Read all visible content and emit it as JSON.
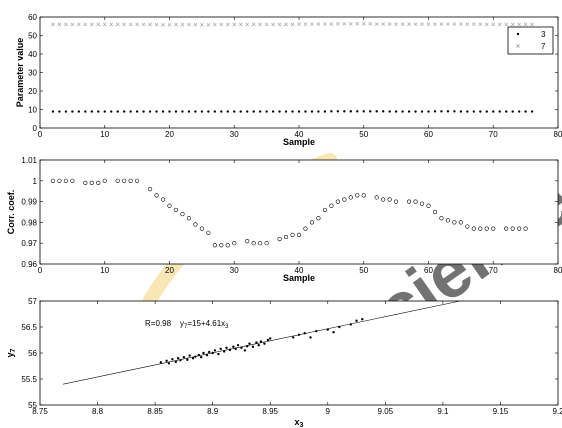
{
  "watermark": {
    "text": "Science",
    "color": "#d8dbe6",
    "accent_color": "#f3d27a"
  },
  "chart_data": [
    {
      "type": "scatter",
      "xlabel": "Sample",
      "ylabel": "Parameter value",
      "xlim": [
        0,
        80
      ],
      "ylim": [
        0,
        60
      ],
      "xticks": [
        0,
        10,
        20,
        30,
        40,
        50,
        60,
        70,
        80
      ],
      "yticks": [
        0,
        10,
        20,
        30,
        40,
        50,
        60
      ],
      "grid": false,
      "legend_position": "top-right",
      "series": [
        {
          "name": "3",
          "marker": "dot",
          "color": "#000000",
          "x": [
            2,
            3,
            4,
            5,
            6,
            7,
            8,
            9,
            10,
            11,
            12,
            13,
            14,
            15,
            16,
            17,
            18,
            19,
            20,
            21,
            22,
            23,
            24,
            25,
            26,
            27,
            28,
            29,
            30,
            31,
            32,
            33,
            34,
            35,
            36,
            37,
            38,
            39,
            40,
            41,
            42,
            43,
            44,
            45,
            46,
            47,
            48,
            49,
            50,
            51,
            52,
            53,
            54,
            55,
            56,
            57,
            58,
            59,
            60,
            61,
            62,
            63,
            64,
            65,
            66,
            67,
            68,
            69,
            70,
            71,
            72,
            73,
            74,
            75,
            76
          ],
          "y": [
            8.9,
            8.9,
            8.9,
            8.9,
            8.9,
            8.9,
            8.9,
            8.9,
            8.9,
            8.9,
            8.9,
            8.9,
            8.9,
            8.9,
            8.9,
            8.9,
            8.9,
            8.9,
            8.9,
            8.9,
            8.9,
            8.9,
            8.9,
            8.9,
            8.9,
            8.9,
            8.9,
            8.9,
            8.9,
            8.9,
            8.9,
            8.9,
            8.9,
            8.9,
            8.9,
            8.9,
            8.9,
            8.9,
            8.9,
            8.9,
            8.9,
            8.9,
            8.9,
            9.0,
            9.0,
            9.0,
            9.0,
            9.0,
            9.0,
            9.0,
            9.0,
            9.0,
            8.9,
            8.9,
            8.9,
            8.9,
            8.9,
            8.9,
            8.9,
            9.0,
            9.0,
            9.0,
            9.0,
            8.9,
            8.9,
            8.9,
            8.9,
            8.9,
            8.9,
            8.9,
            8.9,
            8.9,
            8.9,
            8.9,
            8.9
          ]
        },
        {
          "name": "7",
          "marker": "x",
          "color": "#999999",
          "x": [
            2,
            3,
            4,
            5,
            6,
            7,
            8,
            9,
            10,
            11,
            12,
            13,
            14,
            15,
            16,
            17,
            18,
            19,
            20,
            21,
            22,
            23,
            24,
            25,
            26,
            27,
            28,
            29,
            30,
            31,
            32,
            33,
            34,
            35,
            36,
            37,
            38,
            39,
            40,
            41,
            42,
            43,
            44,
            45,
            46,
            47,
            48,
            49,
            50,
            51,
            52,
            53,
            54,
            55,
            56,
            57,
            58,
            59,
            60,
            61,
            62,
            63,
            64,
            65,
            66,
            67,
            68,
            69,
            70,
            71,
            72,
            73,
            74,
            75,
            76
          ],
          "y": [
            56.0,
            56.0,
            56.0,
            56.0,
            56.0,
            56.0,
            56.0,
            56.0,
            56.0,
            56.0,
            56.0,
            56.0,
            56.0,
            56.0,
            56.0,
            55.9,
            55.9,
            55.8,
            55.8,
            55.9,
            55.9,
            55.9,
            55.9,
            55.8,
            55.8,
            55.9,
            55.9,
            55.9,
            55.9,
            56.0,
            56.0,
            56.0,
            56.0,
            56.0,
            55.9,
            56.0,
            56.0,
            56.0,
            56.1,
            56.1,
            56.2,
            56.2,
            56.2,
            56.2,
            56.3,
            56.3,
            56.3,
            56.3,
            56.3,
            56.3,
            56.2,
            56.2,
            56.2,
            56.1,
            56.1,
            56.1,
            56.1,
            56.1,
            56.1,
            56.1,
            56.2,
            56.2,
            56.2,
            56.2,
            56.1,
            56.1,
            56.1,
            56.0,
            56.0,
            56.0,
            56.0,
            56.0,
            56.0,
            56.0,
            56.0
          ]
        }
      ]
    },
    {
      "type": "scatter",
      "xlabel": "Sample",
      "ylabel": "Corr. coef.",
      "xlim": [
        0,
        80
      ],
      "ylim": [
        0.96,
        1.01
      ],
      "xticks": [
        0,
        10,
        20,
        30,
        40,
        50,
        60,
        70,
        80
      ],
      "yticks": [
        0.96,
        0.97,
        0.98,
        0.99,
        1,
        1.01
      ],
      "ytick_labels": [
        "0.96",
        "0.97",
        "0.98",
        "0.99",
        "1",
        "1.01"
      ],
      "grid": false,
      "series": [
        {
          "marker": "circle",
          "color": "#000000",
          "x": [
            2,
            3,
            4,
            5,
            7,
            8,
            9,
            10,
            12,
            13,
            14,
            15,
            17,
            18,
            19,
            20,
            21,
            22,
            23,
            24,
            25,
            26,
            27,
            28,
            29,
            30,
            32,
            33,
            34,
            35,
            37,
            38,
            39,
            40,
            41,
            42,
            43,
            44,
            45,
            46,
            47,
            48,
            49,
            50,
            52,
            53,
            54,
            55,
            57,
            58,
            59,
            60,
            61,
            62,
            63,
            64,
            65,
            66,
            67,
            68,
            69,
            70,
            72,
            73,
            74,
            75
          ],
          "y": [
            1.0,
            1.0,
            1.0,
            1.0,
            0.999,
            0.999,
            0.999,
            1.0,
            1.0,
            1.0,
            1.0,
            1.0,
            0.996,
            0.993,
            0.991,
            0.988,
            0.986,
            0.984,
            0.982,
            0.979,
            0.977,
            0.975,
            0.969,
            0.969,
            0.969,
            0.97,
            0.971,
            0.97,
            0.97,
            0.97,
            0.972,
            0.973,
            0.974,
            0.974,
            0.977,
            0.98,
            0.982,
            0.986,
            0.988,
            0.99,
            0.991,
            0.992,
            0.993,
            0.993,
            0.992,
            0.991,
            0.991,
            0.99,
            0.99,
            0.99,
            0.989,
            0.988,
            0.985,
            0.982,
            0.981,
            0.98,
            0.98,
            0.978,
            0.977,
            0.977,
            0.977,
            0.977,
            0.977,
            0.977,
            0.977,
            0.977
          ]
        }
      ]
    },
    {
      "type": "scatter",
      "xlabel": "x3",
      "xlabel_main": "x",
      "xlabel_sub": "3",
      "ylabel_main": "y",
      "ylabel_sub": "7",
      "xlim": [
        8.75,
        9.2
      ],
      "ylim": [
        55,
        57
      ],
      "xticks": [
        8.75,
        8.8,
        8.85,
        8.9,
        8.95,
        9,
        9.05,
        9.1,
        9.15,
        9.2
      ],
      "xtick_labels": [
        "8.75",
        "8.8",
        "8.85",
        "8.9",
        "8.95",
        "9",
        "9.05",
        "9.1",
        "9.15",
        "9.2"
      ],
      "yticks": [
        55,
        55.5,
        56,
        56.5,
        57
      ],
      "ytick_labels": [
        "55",
        "55.5",
        "56",
        "56.5",
        "57"
      ],
      "grid": false,
      "annotation": {
        "r_text": "R=0.98",
        "eq_y": "y",
        "eq_ysub": "7",
        "eq_mid": "=15+4.61x",
        "eq_xsub": "3"
      },
      "fit_line": {
        "x": [
          8.77,
          9.115
        ],
        "y": [
          55.4,
          57.0
        ]
      },
      "series": [
        {
          "marker": "dot",
          "color": "#000000",
          "x": [
            8.855,
            8.86,
            8.862,
            8.865,
            8.868,
            8.87,
            8.872,
            8.875,
            8.878,
            8.88,
            8.883,
            8.885,
            8.888,
            8.89,
            8.892,
            8.895,
            8.897,
            8.9,
            8.902,
            8.905,
            8.907,
            8.91,
            8.912,
            8.915,
            8.918,
            8.92,
            8.922,
            8.925,
            8.928,
            8.93,
            8.932,
            8.935,
            8.938,
            8.94,
            8.942,
            8.945,
            8.948,
            8.95,
            8.97,
            8.975,
            8.98,
            8.985,
            8.99,
            9.0,
            9.005,
            9.01,
            9.02,
            9.025,
            9.03
          ],
          "y": [
            55.82,
            55.85,
            55.8,
            55.88,
            55.83,
            55.9,
            55.86,
            55.92,
            55.87,
            55.95,
            55.9,
            55.93,
            55.96,
            55.92,
            56.0,
            55.96,
            56.02,
            56.0,
            56.05,
            55.98,
            56.08,
            56.03,
            56.1,
            56.06,
            56.12,
            56.08,
            56.15,
            56.1,
            56.05,
            56.13,
            56.18,
            56.12,
            56.2,
            56.15,
            56.22,
            56.18,
            56.25,
            56.28,
            56.3,
            56.35,
            56.38,
            56.3,
            56.42,
            56.45,
            56.4,
            56.5,
            56.55,
            56.62,
            56.65
          ]
        }
      ]
    }
  ]
}
